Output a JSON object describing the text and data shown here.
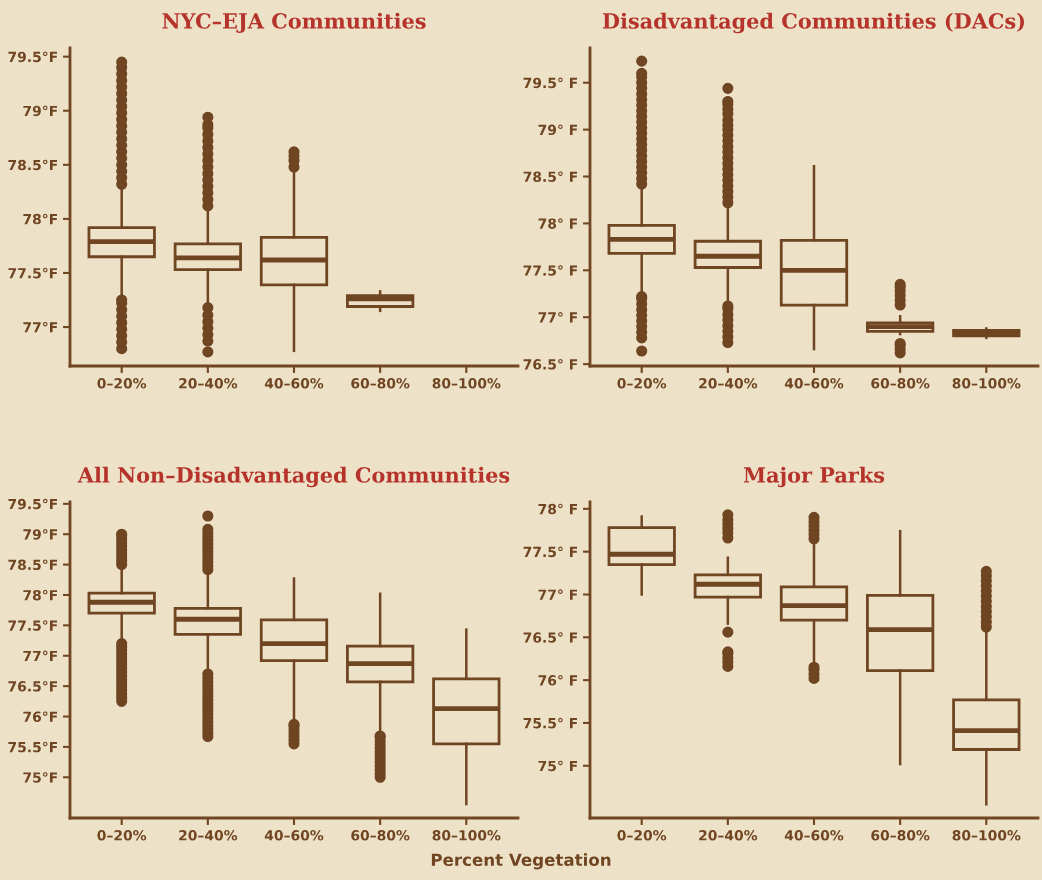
{
  "chart_data": [
    {
      "type": "box",
      "title": "NYC–EJA Communities",
      "categories": [
        "0–20%",
        "20–40%",
        "40–60%",
        "60–80%",
        "80–100%"
      ],
      "color": "#6f4522",
      "ylim": [
        76.64,
        79.58
      ],
      "yticks": [
        {
          "value": 77,
          "label": "77°F"
        },
        {
          "value": 77.5,
          "label": "77.5°F"
        },
        {
          "value": 78,
          "label": "78°F"
        },
        {
          "value": 78.5,
          "label": "78.5°F"
        },
        {
          "value": 79,
          "label": "79°F"
        },
        {
          "value": 79.5,
          "label": "79.5°F"
        }
      ],
      "boxes": [
        {
          "low": 77.28,
          "q1": 77.65,
          "median": 77.79,
          "q3": 77.92,
          "high": 78.3,
          "outliers": [
            76.8,
            76.86,
            76.92,
            76.98,
            77.04,
            77.1,
            77.16,
            77.22,
            77.25,
            78.32,
            78.38,
            78.44,
            78.5,
            78.56,
            78.62,
            78.68,
            78.74,
            78.8,
            78.86,
            78.92,
            78.98,
            79.04,
            79.1,
            79.16,
            79.22,
            79.28,
            79.34,
            79.4,
            79.45
          ]
        },
        {
          "low": 77.2,
          "q1": 77.53,
          "median": 77.64,
          "q3": 77.77,
          "high": 78.1,
          "outliers": [
            76.77,
            76.87,
            76.93,
            76.99,
            77.05,
            77.11,
            77.18,
            78.12,
            78.18,
            78.24,
            78.3,
            78.36,
            78.42,
            78.48,
            78.54,
            78.6,
            78.66,
            78.72,
            78.78,
            78.84,
            78.87,
            78.94
          ]
        },
        {
          "low": 76.78,
          "q1": 77.39,
          "median": 77.62,
          "q3": 77.83,
          "high": 78.46,
          "outliers": [
            78.48,
            78.54,
            78.58,
            78.62
          ]
        },
        {
          "low": 77.15,
          "q1": 77.19,
          "median": 77.26,
          "q3": 77.29,
          "high": 77.33
        },
        null
      ]
    },
    {
      "type": "box",
      "title": "Disadvantaged Communities (DACs)",
      "categories": [
        "0–20%",
        "20–40%",
        "40–60%",
        "60–80%",
        "80–100%"
      ],
      "color": "#6f4522",
      "ylim": [
        76.48,
        79.87
      ],
      "yticks": [
        {
          "value": 76.5,
          "label": "76.5° F"
        },
        {
          "value": 77,
          "label": "77° F"
        },
        {
          "value": 77.5,
          "label": "77.5° F"
        },
        {
          "value": 78,
          "label": "78° F"
        },
        {
          "value": 78.5,
          "label": "78.5° F"
        },
        {
          "value": 79,
          "label": "79° F"
        },
        {
          "value": 79.5,
          "label": "79.5° F"
        }
      ],
      "boxes": [
        {
          "low": 77.25,
          "q1": 77.68,
          "median": 77.83,
          "q3": 77.98,
          "high": 78.39,
          "outliers": [
            76.64,
            76.78,
            76.84,
            76.9,
            76.96,
            77.02,
            77.08,
            77.14,
            77.2,
            77.22,
            78.42,
            78.48,
            78.54,
            78.6,
            78.66,
            78.72,
            78.78,
            78.84,
            78.9,
            78.96,
            79.02,
            79.08,
            79.14,
            79.2,
            79.26,
            79.32,
            79.38,
            79.44,
            79.5,
            79.56,
            79.6,
            79.73
          ]
        },
        {
          "low": 77.14,
          "q1": 77.53,
          "median": 77.65,
          "q3": 77.81,
          "high": 78.2,
          "outliers": [
            76.73,
            76.79,
            76.85,
            76.91,
            76.97,
            77.03,
            77.09,
            77.12,
            78.22,
            78.28,
            78.34,
            78.4,
            78.46,
            78.52,
            78.58,
            78.64,
            78.7,
            78.76,
            78.82,
            78.88,
            78.94,
            79.0,
            79.05,
            79.1,
            79.17,
            79.22,
            79.27,
            79.3,
            79.44
          ]
        },
        {
          "low": 76.66,
          "q1": 77.13,
          "median": 77.5,
          "q3": 77.82,
          "high": 78.61
        },
        {
          "low": 76.82,
          "q1": 76.85,
          "median": 76.9,
          "q3": 76.94,
          "high": 77.01,
          "outliers": [
            76.62,
            76.66,
            76.7,
            76.72,
            77.13,
            77.18,
            77.23,
            77.28,
            77.32,
            77.35
          ]
        },
        {
          "low": 76.78,
          "q1": 76.8,
          "median": 76.83,
          "q3": 76.86,
          "high": 76.88
        }
      ]
    },
    {
      "type": "box",
      "title": "All Non–Disadvantaged Communities",
      "categories": [
        "0–20%",
        "20–40%",
        "40–60%",
        "60–80%",
        "80–100%"
      ],
      "color": "#6f4522",
      "ylim": [
        74.33,
        79.53
      ],
      "yticks": [
        {
          "value": 75,
          "label": "75°F"
        },
        {
          "value": 75.5,
          "label": "75.5°F"
        },
        {
          "value": 76,
          "label": "76°F"
        },
        {
          "value": 76.5,
          "label": "76.5°F"
        },
        {
          "value": 77,
          "label": "77°F"
        },
        {
          "value": 77.5,
          "label": "77.5°F"
        },
        {
          "value": 78,
          "label": "78°F"
        },
        {
          "value": 78.5,
          "label": "78.5°F"
        },
        {
          "value": 79,
          "label": "79°F"
        },
        {
          "value": 79.5,
          "label": "79.5°F"
        }
      ],
      "boxes": [
        {
          "low": 77.25,
          "q1": 77.7,
          "median": 77.88,
          "q3": 78.03,
          "high": 78.47,
          "outliers": [
            76.25,
            76.31,
            76.37,
            76.43,
            76.49,
            76.55,
            76.61,
            76.67,
            76.73,
            76.79,
            76.85,
            76.91,
            76.97,
            77.03,
            77.09,
            77.15,
            77.2,
            78.5,
            78.56,
            78.62,
            78.68,
            78.74,
            78.8,
            78.86,
            78.92,
            78.98,
            79.0
          ]
        },
        {
          "low": 76.73,
          "q1": 77.35,
          "median": 77.6,
          "q3": 77.78,
          "high": 78.39,
          "outliers": [
            75.67,
            75.73,
            75.79,
            75.85,
            75.91,
            75.97,
            76.03,
            76.09,
            76.15,
            76.21,
            76.27,
            76.33,
            76.39,
            76.45,
            76.51,
            76.57,
            76.63,
            76.7,
            78.42,
            78.48,
            78.54,
            78.6,
            78.66,
            78.72,
            78.78,
            78.84,
            78.9,
            78.96,
            79.02,
            79.08,
            79.3
          ]
        },
        {
          "low": 75.93,
          "q1": 76.92,
          "median": 77.2,
          "q3": 77.59,
          "high": 78.27,
          "outliers": [
            75.55,
            75.61,
            75.67,
            75.73,
            75.79,
            75.85,
            75.87
          ]
        },
        {
          "low": 75.72,
          "q1": 76.57,
          "median": 76.87,
          "q3": 77.16,
          "high": 78.02,
          "outliers": [
            75.0,
            75.06,
            75.12,
            75.18,
            75.24,
            75.3,
            75.36,
            75.42,
            75.48,
            75.54,
            75.6,
            75.66,
            75.68
          ]
        },
        {
          "low": 74.56,
          "q1": 75.55,
          "median": 76.13,
          "q3": 76.62,
          "high": 77.43
        }
      ]
    },
    {
      "type": "box",
      "title": "Major Parks",
      "categories": [
        "0–20%",
        "20–40%",
        "40–60%",
        "60–80%",
        "80–100%"
      ],
      "color": "#6f4522",
      "ylim": [
        74.39,
        78.08
      ],
      "yticks": [
        {
          "value": 75,
          "label": "75° F"
        },
        {
          "value": 75.5,
          "label": "75.5° F"
        },
        {
          "value": 76,
          "label": "76° F"
        },
        {
          "value": 76.5,
          "label": "76.5° F"
        },
        {
          "value": 77,
          "label": "77° F"
        },
        {
          "value": 77.5,
          "label": "77.5° F"
        },
        {
          "value": 78,
          "label": "78° F"
        }
      ],
      "annotations": [
        "Percent Vegetation"
      ],
      "boxes": [
        {
          "low": 77.0,
          "q1": 77.35,
          "median": 77.47,
          "q3": 77.78,
          "high": 77.91
        },
        {
          "low": 76.66,
          "q1": 76.97,
          "median": 77.12,
          "q3": 77.23,
          "high": 77.43,
          "outliers": [
            76.16,
            76.21,
            76.26,
            76.31,
            76.33,
            76.56,
            77.66,
            77.72,
            77.77,
            77.82,
            77.87,
            77.93
          ]
        },
        {
          "low": 76.2,
          "q1": 76.7,
          "median": 76.87,
          "q3": 77.09,
          "high": 77.63,
          "outliers": [
            76.02,
            76.07,
            76.12,
            76.15,
            77.65,
            77.7,
            77.75,
            77.8,
            77.85,
            77.9
          ]
        },
        {
          "low": 75.02,
          "q1": 76.11,
          "median": 76.59,
          "q3": 76.99,
          "high": 77.74
        },
        {
          "low": 74.55,
          "q1": 75.19,
          "median": 75.41,
          "q3": 75.77,
          "high": 76.59,
          "outliers": [
            76.62,
            76.68,
            76.74,
            76.8,
            76.86,
            76.92,
            76.98,
            77.04,
            77.1,
            77.16,
            77.22,
            77.27
          ]
        }
      ]
    }
  ]
}
